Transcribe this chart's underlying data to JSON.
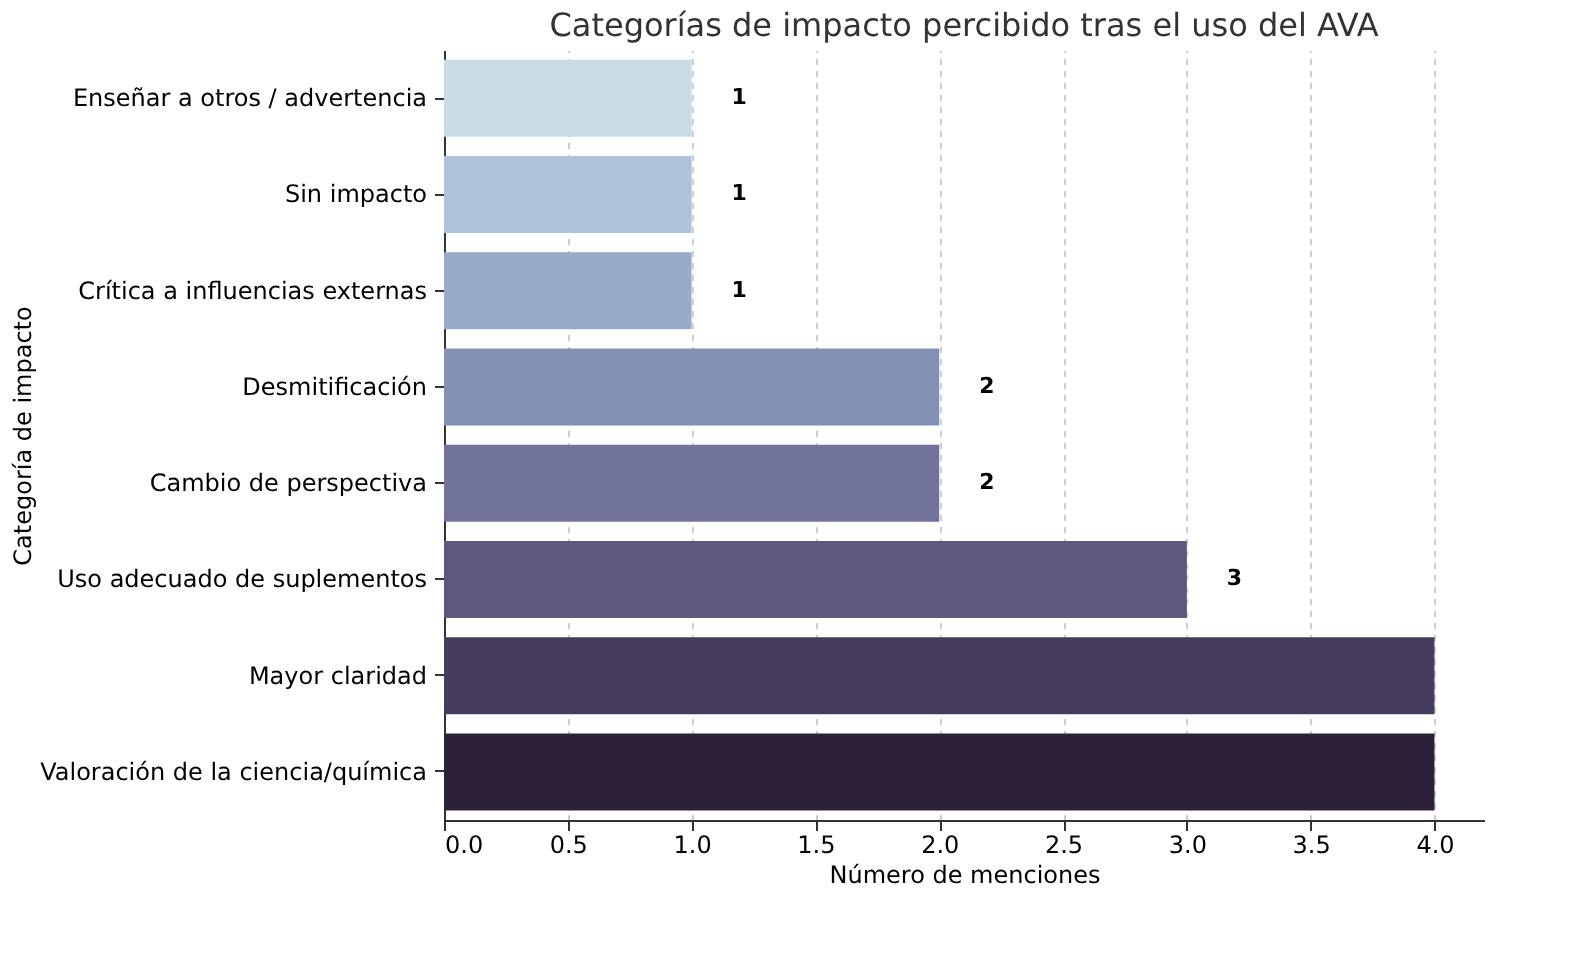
{
  "chart_data": {
    "type": "bar",
    "orientation": "horizontal",
    "title": "Categorías de impacto percibido tras el uso del AVA",
    "xlabel": "Número de menciones",
    "ylabel": "Categoría de impacto",
    "categories": [
      "Enseñar a otros / advertencia",
      "Sin impacto",
      "Crítica a influencias externas",
      "Desmitificación",
      "Cambio de perspectiva",
      "Uso adecuado de suplementos",
      "Mayor claridad",
      "Valoración de la ciencia/química"
    ],
    "values": [
      1,
      1,
      1,
      2,
      2,
      3,
      4,
      4
    ],
    "colors": [
      "#c9dce5",
      "#aec3d8",
      "#97aac7",
      "#8290b3",
      "#71739b",
      "#5c587e",
      "#453c5f",
      "#2c2139"
    ],
    "value_labels": [
      "1",
      "1",
      "1",
      "2",
      "2",
      "3",
      null,
      null
    ],
    "xlim": [
      0,
      4.2
    ],
    "xticks": [
      {
        "value": 0,
        "label": "0.0"
      },
      0.5,
      {
        "value": 1,
        "label": "1.0"
      },
      1.5,
      {
        "value": 2,
        "label": "2.0"
      },
      2.5,
      {
        "value": 3,
        "label": "3.0"
      },
      3.5,
      {
        "value": 4,
        "label": "4.0"
      }
    ],
    "grid": "x"
  }
}
